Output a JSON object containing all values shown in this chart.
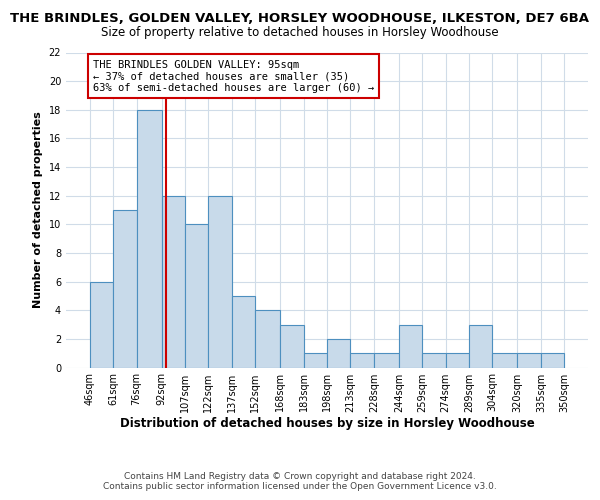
{
  "title": "THE BRINDLES, GOLDEN VALLEY, HORSLEY WOODHOUSE, ILKESTON, DE7 6BA",
  "subtitle": "Size of property relative to detached houses in Horsley Woodhouse",
  "xlabel": "Distribution of detached houses by size in Horsley Woodhouse",
  "ylabel": "Number of detached properties",
  "bin_edges": [
    46,
    61,
    76,
    92,
    107,
    122,
    137,
    152,
    168,
    183,
    198,
    213,
    228,
    244,
    259,
    274,
    289,
    304,
    320,
    335,
    350
  ],
  "bin_labels": [
    "46sqm",
    "61sqm",
    "76sqm",
    "92sqm",
    "107sqm",
    "122sqm",
    "137sqm",
    "152sqm",
    "168sqm",
    "183sqm",
    "198sqm",
    "213sqm",
    "228sqm",
    "244sqm",
    "259sqm",
    "274sqm",
    "289sqm",
    "304sqm",
    "320sqm",
    "335sqm",
    "350sqm"
  ],
  "counts": [
    6,
    11,
    18,
    12,
    10,
    12,
    5,
    4,
    3,
    1,
    2,
    1,
    1,
    3,
    1,
    1,
    3,
    1,
    1,
    1
  ],
  "bar_color": "#c8daea",
  "bar_edge_color": "#4d8fbf",
  "reference_line_x": 95,
  "reference_line_color": "#cc0000",
  "annotation_text": "THE BRINDLES GOLDEN VALLEY: 95sqm\n← 37% of detached houses are smaller (35)\n63% of semi-detached houses are larger (60) →",
  "annotation_box_color": "#ffffff",
  "annotation_box_edge_color": "#cc0000",
  "ylim": [
    0,
    22
  ],
  "yticks": [
    0,
    2,
    4,
    6,
    8,
    10,
    12,
    14,
    16,
    18,
    20,
    22
  ],
  "footer1": "Contains HM Land Registry data © Crown copyright and database right 2024.",
  "footer2": "Contains public sector information licensed under the Open Government Licence v3.0.",
  "background_color": "#ffffff",
  "plot_bg_color": "#ffffff",
  "grid_color": "#d0dce8",
  "title_fontsize": 9.5,
  "subtitle_fontsize": 8.5,
  "xlabel_fontsize": 8.5,
  "ylabel_fontsize": 8,
  "tick_fontsize": 7,
  "annotation_fontsize": 7.5,
  "footer_fontsize": 6.5
}
